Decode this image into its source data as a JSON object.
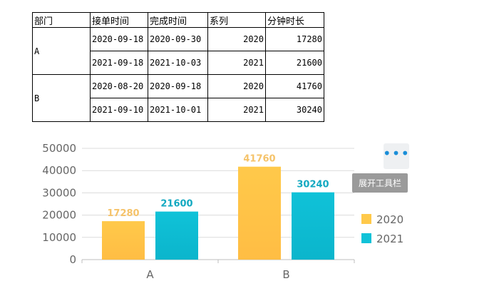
{
  "table": {
    "headers": [
      "部门",
      "接单时间",
      "完成时间",
      "系列",
      "分钟时长"
    ],
    "groups": [
      {
        "dept": "A",
        "rows": [
          [
            "2020-09-18",
            "2020-09-30",
            "2020",
            "17280"
          ],
          [
            "2021-09-18",
            "2021-10-03",
            "2021",
            "21600"
          ]
        ]
      },
      {
        "dept": "B",
        "rows": [
          [
            "2020-08-20",
            "2020-09-18",
            "2020",
            "41760"
          ],
          [
            "2021-09-10",
            "2021-10-01",
            "2021",
            "30240"
          ]
        ]
      }
    ]
  },
  "toolbar": {
    "tooltip": "展开工具栏",
    "button_icon": "more-dots-icon"
  },
  "chart_data": {
    "type": "bar",
    "categories": [
      "A",
      "B"
    ],
    "series": [
      {
        "name": "2020",
        "values": [
          17280,
          41760
        ],
        "color": "#ffc94a",
        "label_color": "#f5c36a"
      },
      {
        "name": "2021",
        "values": [
          21600,
          30240
        ],
        "color": "#10c2d8",
        "label_color": "#13a9c1"
      }
    ],
    "ylim": [
      0,
      50000
    ],
    "yticks": [
      "0",
      "10000",
      "20000",
      "30000",
      "40000",
      "50000"
    ],
    "grid": true,
    "legend": "right"
  }
}
